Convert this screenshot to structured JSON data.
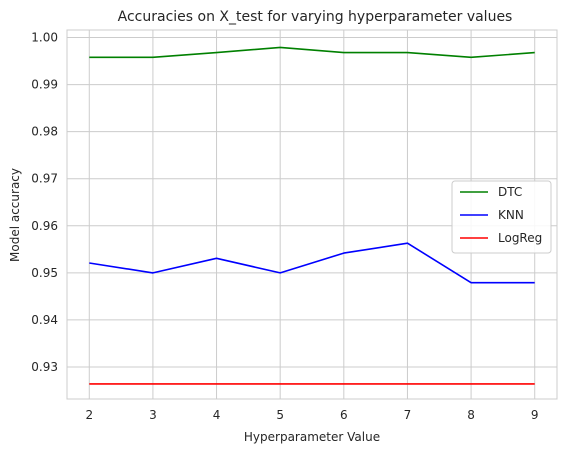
{
  "chart_data": {
    "type": "line",
    "title": "Accuracies on X_test for varying hyperparameter values",
    "xlabel": "Hyperparameter Value",
    "ylabel": "Model accuracy",
    "x": [
      2,
      3,
      4,
      5,
      6,
      7,
      8,
      9
    ],
    "xlim": [
      1.65,
      9.35
    ],
    "ylim": [
      0.9232,
      1.0016
    ],
    "yticks": [
      0.93,
      0.94,
      0.95,
      0.96,
      0.97,
      0.98,
      0.99,
      1.0
    ],
    "ytick_labels": [
      "0.93",
      "0.94",
      "0.95",
      "0.96",
      "0.97",
      "0.98",
      "0.99",
      "1.00"
    ],
    "grid": true,
    "legend_position": "center-right",
    "series": [
      {
        "name": "DTC",
        "color": "#008000",
        "values": [
          0.9958,
          0.9958,
          0.9968,
          0.9979,
          0.9968,
          0.9968,
          0.9958,
          0.9968
        ]
      },
      {
        "name": "KNN",
        "color": "#0000ff",
        "values": [
          0.9521,
          0.95,
          0.9531,
          0.95,
          0.9542,
          0.9563,
          0.9479,
          0.9479
        ]
      },
      {
        "name": "LogReg",
        "color": "#ff0000",
        "values": [
          0.9264,
          0.9264,
          0.9264,
          0.9264,
          0.9264,
          0.9264,
          0.9264,
          0.9264
        ]
      }
    ]
  }
}
